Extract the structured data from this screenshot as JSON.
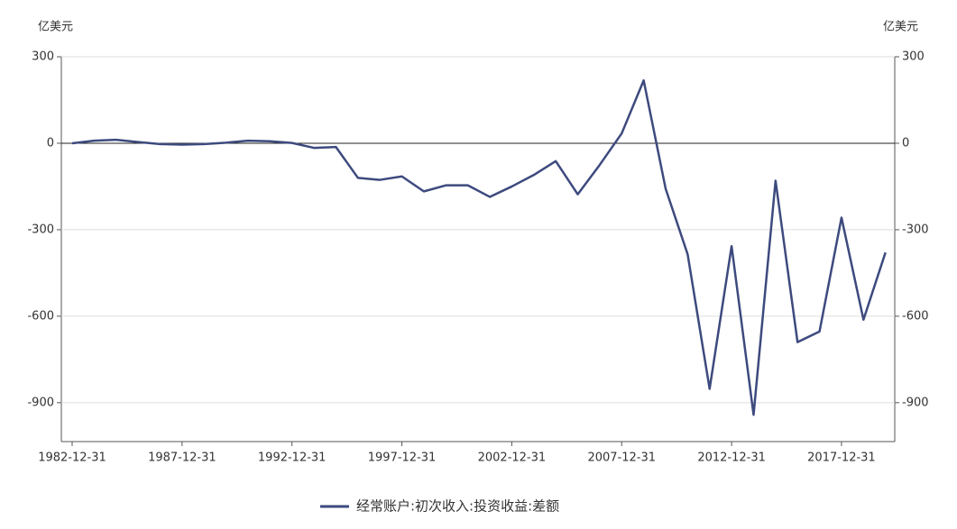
{
  "chart_data": {
    "type": "line",
    "y_unit_left": "亿美元",
    "y_unit_right": "亿美元",
    "categories": [
      "1982-12-31",
      null,
      null,
      null,
      null,
      "1987-12-31",
      null,
      null,
      null,
      null,
      "1992-12-31",
      null,
      null,
      null,
      null,
      "1997-12-31",
      null,
      null,
      null,
      null,
      "2002-12-31",
      null,
      null,
      null,
      null,
      "2007-12-31",
      null,
      null,
      null,
      null,
      "2012-12-31",
      null,
      null,
      null,
      null,
      "2017-12-31",
      null,
      null
    ],
    "series": [
      {
        "name": "经常账户:初次收入:投资收益:差额",
        "color": "#3d4a7e",
        "values": [
          0,
          9,
          12,
          4,
          -3,
          -5,
          -3,
          2,
          9,
          7,
          1,
          -16,
          -13,
          -120,
          -127,
          -115,
          -167,
          -146,
          -146,
          -186,
          -150,
          -110,
          -62,
          -177,
          -75,
          34,
          218,
          -158,
          -385,
          -852,
          -357,
          -942,
          -130,
          -690,
          -653,
          -258,
          -612,
          -379
        ]
      }
    ],
    "ylim": [
      -1035,
      300
    ],
    "yticks": [
      300,
      0,
      -300,
      -600,
      -900
    ],
    "y2lim": [
      -1035,
      300
    ],
    "y2ticks": [
      300,
      0,
      -300,
      -600,
      -900
    ],
    "grid": true
  }
}
